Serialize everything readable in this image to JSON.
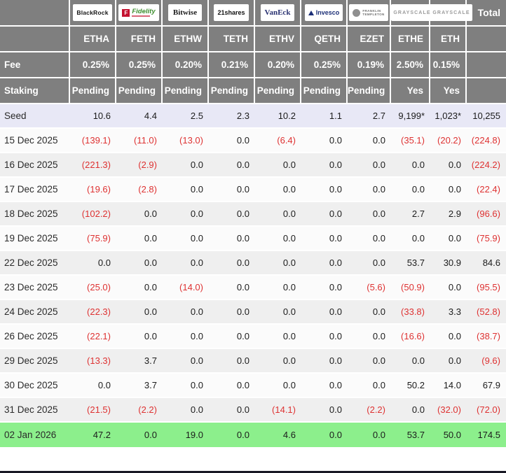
{
  "table": {
    "labels": {
      "fee": "Fee",
      "staking": "Staking",
      "total": "Total"
    },
    "providers": [
      {
        "name": "BlackRock",
        "ticker": "ETHA",
        "fee": "0.25%",
        "staking": "Pending",
        "logo_style": "blackrock",
        "logo_text": "BlackRock"
      },
      {
        "name": "Fidelity",
        "ticker": "FETH",
        "fee": "0.25%",
        "staking": "Pending",
        "logo_style": "fidelity",
        "logo_text": "Fidelity",
        "logo_badge": "F"
      },
      {
        "name": "Bitwise",
        "ticker": "ETHW",
        "fee": "0.20%",
        "staking": "Pending",
        "logo_style": "bitwise",
        "logo_text": "Bitwise"
      },
      {
        "name": "21shares",
        "ticker": "TETH",
        "fee": "0.21%",
        "staking": "Pending",
        "logo_style": "21shares",
        "logo_text": "21shares"
      },
      {
        "name": "VanEck",
        "ticker": "ETHV",
        "fee": "0.20%",
        "staking": "Pending",
        "logo_style": "vaneck",
        "logo_text": "VanEck"
      },
      {
        "name": "Invesco",
        "ticker": "QETH",
        "fee": "0.25%",
        "staking": "Pending",
        "logo_style": "invesco",
        "logo_text": "Invesco"
      },
      {
        "name": "Franklin Templeton",
        "ticker": "EZET",
        "fee": "0.19%",
        "staking": "Pending",
        "logo_style": "franklin",
        "logo_lines": [
          "FRANKLIN",
          "TEMPLETON"
        ]
      },
      {
        "name": "Grayscale",
        "ticker": "ETHE",
        "fee": "2.50%",
        "staking": "Yes",
        "logo_style": "grayscale",
        "logo_text": "GRAYSCALE"
      },
      {
        "name": "Grayscale",
        "ticker": "ETH",
        "fee": "0.15%",
        "staking": "Yes",
        "logo_style": "grayscale",
        "logo_text": "GRAYSCALE"
      }
    ],
    "rows": [
      {
        "label": "Seed",
        "highlight": "seed",
        "values": [
          "10.6",
          "4.4",
          "2.5",
          "2.3",
          "10.2",
          "1.1",
          "2.7",
          "9,199*",
          "1,023*",
          "10,255"
        ]
      },
      {
        "label": "15 Dec 2025",
        "values": [
          "(139.1)",
          "(11.0)",
          "(13.0)",
          "0.0",
          "(6.4)",
          "0.0",
          "0.0",
          "(35.1)",
          "(20.2)",
          "(224.8)"
        ]
      },
      {
        "label": "16 Dec 2025",
        "values": [
          "(221.3)",
          "(2.9)",
          "0.0",
          "0.0",
          "0.0",
          "0.0",
          "0.0",
          "0.0",
          "0.0",
          "(224.2)"
        ]
      },
      {
        "label": "17 Dec 2025",
        "values": [
          "(19.6)",
          "(2.8)",
          "0.0",
          "0.0",
          "0.0",
          "0.0",
          "0.0",
          "0.0",
          "0.0",
          "(22.4)"
        ]
      },
      {
        "label": "18 Dec 2025",
        "values": [
          "(102.2)",
          "0.0",
          "0.0",
          "0.0",
          "0.0",
          "0.0",
          "0.0",
          "2.7",
          "2.9",
          "(96.6)"
        ]
      },
      {
        "label": "19 Dec 2025",
        "values": [
          "(75.9)",
          "0.0",
          "0.0",
          "0.0",
          "0.0",
          "0.0",
          "0.0",
          "0.0",
          "0.0",
          "(75.9)"
        ]
      },
      {
        "label": "22 Dec 2025",
        "values": [
          "0.0",
          "0.0",
          "0.0",
          "0.0",
          "0.0",
          "0.0",
          "0.0",
          "53.7",
          "30.9",
          "84.6"
        ]
      },
      {
        "label": "23 Dec 2025",
        "values": [
          "(25.0)",
          "0.0",
          "(14.0)",
          "0.0",
          "0.0",
          "0.0",
          "(5.6)",
          "(50.9)",
          "0.0",
          "(95.5)"
        ]
      },
      {
        "label": "24 Dec 2025",
        "values": [
          "(22.3)",
          "0.0",
          "0.0",
          "0.0",
          "0.0",
          "0.0",
          "0.0",
          "(33.8)",
          "3.3",
          "(52.8)"
        ]
      },
      {
        "label": "26 Dec 2025",
        "values": [
          "(22.1)",
          "0.0",
          "0.0",
          "0.0",
          "0.0",
          "0.0",
          "0.0",
          "(16.6)",
          "0.0",
          "(38.7)"
        ]
      },
      {
        "label": "29 Dec 2025",
        "values": [
          "(13.3)",
          "3.7",
          "0.0",
          "0.0",
          "0.0",
          "0.0",
          "0.0",
          "0.0",
          "0.0",
          "(9.6)"
        ]
      },
      {
        "label": "30 Dec 2025",
        "values": [
          "0.0",
          "3.7",
          "0.0",
          "0.0",
          "0.0",
          "0.0",
          "0.0",
          "50.2",
          "14.0",
          "67.9"
        ]
      },
      {
        "label": "31 Dec 2025",
        "values": [
          "(21.5)",
          "(2.2)",
          "0.0",
          "0.0",
          "(14.1)",
          "0.0",
          "(2.2)",
          "0.0",
          "(32.0)",
          "(72.0)"
        ]
      },
      {
        "label": "02 Jan 2026",
        "highlight": "latest",
        "values": [
          "47.2",
          "0.0",
          "19.0",
          "0.0",
          "4.6",
          "0.0",
          "0.0",
          "53.7",
          "50.0",
          "174.5"
        ]
      }
    ],
    "colors": {
      "header_bg": "#7f7f7f",
      "seed_row_bg": "#e8e8f6",
      "latest_row_bg": "#8cef8c",
      "row_bg": "#fbfbfb",
      "row_alt_bg": "#efefef",
      "negative_text": "#de3232",
      "bottom_bar": "#181824"
    }
  },
  "chart_data": {
    "type": "table",
    "columns": [
      "ETHA",
      "FETH",
      "ETHW",
      "TETH",
      "ETHV",
      "QETH",
      "EZET",
      "ETHE",
      "ETH",
      "Total"
    ],
    "providers": [
      "BlackRock",
      "Fidelity",
      "Bitwise",
      "21shares",
      "VanEck",
      "Invesco",
      "Franklin Templeton",
      "Grayscale",
      "Grayscale"
    ],
    "fees_pct": [
      0.25,
      0.25,
      0.2,
      0.21,
      0.2,
      0.25,
      0.19,
      2.5,
      0.15
    ],
    "staking": [
      "Pending",
      "Pending",
      "Pending",
      "Pending",
      "Pending",
      "Pending",
      "Pending",
      "Yes",
      "Yes"
    ],
    "rows": [
      {
        "label": "Seed",
        "values": [
          10.6,
          4.4,
          2.5,
          2.3,
          10.2,
          1.1,
          2.7,
          9199,
          1023,
          10255
        ]
      },
      {
        "label": "15 Dec 2025",
        "values": [
          -139.1,
          -11.0,
          -13.0,
          0.0,
          -6.4,
          0.0,
          0.0,
          -35.1,
          -20.2,
          -224.8
        ]
      },
      {
        "label": "16 Dec 2025",
        "values": [
          -221.3,
          -2.9,
          0.0,
          0.0,
          0.0,
          0.0,
          0.0,
          0.0,
          0.0,
          -224.2
        ]
      },
      {
        "label": "17 Dec 2025",
        "values": [
          -19.6,
          -2.8,
          0.0,
          0.0,
          0.0,
          0.0,
          0.0,
          0.0,
          0.0,
          -22.4
        ]
      },
      {
        "label": "18 Dec 2025",
        "values": [
          -102.2,
          0.0,
          0.0,
          0.0,
          0.0,
          0.0,
          0.0,
          2.7,
          2.9,
          -96.6
        ]
      },
      {
        "label": "19 Dec 2025",
        "values": [
          -75.9,
          0.0,
          0.0,
          0.0,
          0.0,
          0.0,
          0.0,
          0.0,
          0.0,
          -75.9
        ]
      },
      {
        "label": "22 Dec 2025",
        "values": [
          0.0,
          0.0,
          0.0,
          0.0,
          0.0,
          0.0,
          0.0,
          53.7,
          30.9,
          84.6
        ]
      },
      {
        "label": "23 Dec 2025",
        "values": [
          -25.0,
          0.0,
          -14.0,
          0.0,
          0.0,
          0.0,
          -5.6,
          -50.9,
          0.0,
          -95.5
        ]
      },
      {
        "label": "24 Dec 2025",
        "values": [
          -22.3,
          0.0,
          0.0,
          0.0,
          0.0,
          0.0,
          0.0,
          -33.8,
          3.3,
          -52.8
        ]
      },
      {
        "label": "26 Dec 2025",
        "values": [
          -22.1,
          0.0,
          0.0,
          0.0,
          0.0,
          0.0,
          0.0,
          -16.6,
          0.0,
          -38.7
        ]
      },
      {
        "label": "29 Dec 2025",
        "values": [
          -13.3,
          3.7,
          0.0,
          0.0,
          0.0,
          0.0,
          0.0,
          0.0,
          0.0,
          -9.6
        ]
      },
      {
        "label": "30 Dec 2025",
        "values": [
          0.0,
          3.7,
          0.0,
          0.0,
          0.0,
          0.0,
          0.0,
          50.2,
          14.0,
          67.9
        ]
      },
      {
        "label": "31 Dec 2025",
        "values": [
          -21.5,
          -2.2,
          0.0,
          0.0,
          -14.1,
          0.0,
          -2.2,
          0.0,
          -32.0,
          -72.0
        ]
      },
      {
        "label": "02 Jan 2026",
        "values": [
          47.2,
          0.0,
          19.0,
          0.0,
          4.6,
          0.0,
          0.0,
          53.7,
          50.0,
          174.5
        ]
      }
    ]
  }
}
